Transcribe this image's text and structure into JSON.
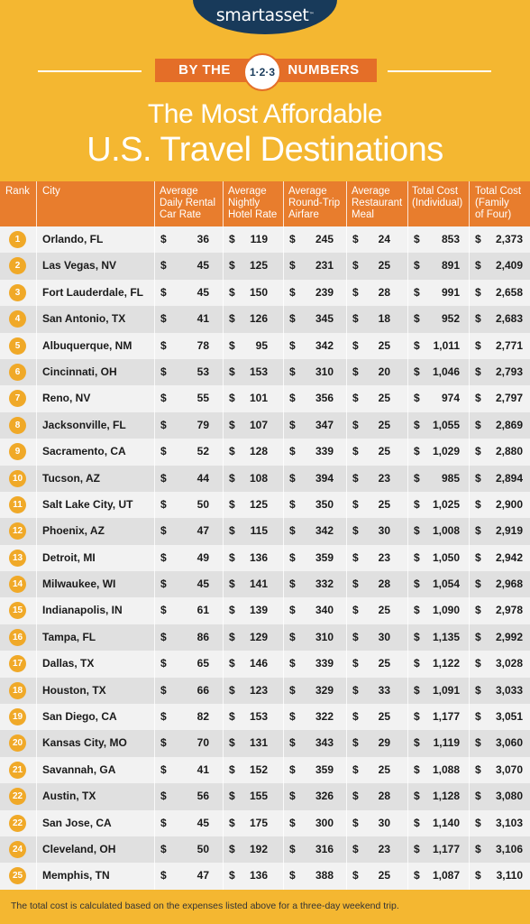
{
  "brand": {
    "name": "smartasset",
    "mark": "™"
  },
  "banner": {
    "left": "BY THE",
    "middle": "1·2·3",
    "right": "NUMBERS"
  },
  "title": {
    "line1": "The Most Affordable",
    "line2": "U.S. Travel Destinations"
  },
  "colors": {
    "background": "#f4b731",
    "header": "#e87d2d",
    "rank_dot": "#f0a928",
    "navy": "#183a5a"
  },
  "chart_data": {
    "type": "table",
    "columns": [
      "Rank",
      "City",
      "Average Daily Rental Car Rate",
      "Average Nightly Hotel Rate",
      "Average Round-Trip Airfare",
      "Average Restaurant Meal",
      "Total Cost (Individual)",
      "Total Cost (Family of Four)"
    ],
    "column_lines": [
      [
        "Rank"
      ],
      [
        "City"
      ],
      [
        "Average",
        "Daily Rental",
        "Car Rate"
      ],
      [
        "Average",
        "Nightly",
        "Hotel Rate"
      ],
      [
        "Average",
        "Round-Trip",
        "Airfare"
      ],
      [
        "Average",
        "Restaurant",
        "Meal"
      ],
      [
        "Total Cost",
        "(Individual)"
      ],
      [
        "Total Cost",
        "(Family",
        "of Four)"
      ]
    ],
    "currency": "$",
    "rows": [
      {
        "rank": "1",
        "city": "Orlando, FL",
        "car": "36",
        "hotel": "119",
        "air": "245",
        "meal": "24",
        "ind": "853",
        "fam": "2,373"
      },
      {
        "rank": "2",
        "city": "Las Vegas, NV",
        "car": "45",
        "hotel": "125",
        "air": "231",
        "meal": "25",
        "ind": "891",
        "fam": "2,409"
      },
      {
        "rank": "3",
        "city": "Fort Lauderdale, FL",
        "car": "45",
        "hotel": "150",
        "air": "239",
        "meal": "28",
        "ind": "991",
        "fam": "2,658"
      },
      {
        "rank": "4",
        "city": "San Antonio, TX",
        "car": "41",
        "hotel": "126",
        "air": "345",
        "meal": "18",
        "ind": "952",
        "fam": "2,683"
      },
      {
        "rank": "5",
        "city": "Albuquerque, NM",
        "car": "78",
        "hotel": "95",
        "air": "342",
        "meal": "25",
        "ind": "1,011",
        "fam": "2,771"
      },
      {
        "rank": "6",
        "city": "Cincinnati, OH",
        "car": "53",
        "hotel": "153",
        "air": "310",
        "meal": "20",
        "ind": "1,046",
        "fam": "2,793"
      },
      {
        "rank": "7",
        "city": "Reno, NV",
        "car": "55",
        "hotel": "101",
        "air": "356",
        "meal": "25",
        "ind": "974",
        "fam": "2,797"
      },
      {
        "rank": "8",
        "city": "Jacksonville, FL",
        "car": "79",
        "hotel": "107",
        "air": "347",
        "meal": "25",
        "ind": "1,055",
        "fam": "2,869"
      },
      {
        "rank": "9",
        "city": "Sacramento, CA",
        "car": "52",
        "hotel": "128",
        "air": "339",
        "meal": "25",
        "ind": "1,029",
        "fam": "2,880"
      },
      {
        "rank": "10",
        "city": "Tucson, AZ",
        "car": "44",
        "hotel": "108",
        "air": "394",
        "meal": "23",
        "ind": "985",
        "fam": "2,894"
      },
      {
        "rank": "11",
        "city": "Salt Lake City, UT",
        "car": "50",
        "hotel": "125",
        "air": "350",
        "meal": "25",
        "ind": "1,025",
        "fam": "2,900"
      },
      {
        "rank": "12",
        "city": "Phoenix, AZ",
        "car": "47",
        "hotel": "115",
        "air": "342",
        "meal": "30",
        "ind": "1,008",
        "fam": "2,919"
      },
      {
        "rank": "13",
        "city": "Detroit, MI",
        "car": "49",
        "hotel": "136",
        "air": "359",
        "meal": "23",
        "ind": "1,050",
        "fam": "2,942"
      },
      {
        "rank": "14",
        "city": "Milwaukee, WI",
        "car": "45",
        "hotel": "141",
        "air": "332",
        "meal": "28",
        "ind": "1,054",
        "fam": "2,968"
      },
      {
        "rank": "15",
        "city": "Indianapolis, IN",
        "car": "61",
        "hotel": "139",
        "air": "340",
        "meal": "25",
        "ind": "1,090",
        "fam": "2,978"
      },
      {
        "rank": "16",
        "city": "Tampa, FL",
        "car": "86",
        "hotel": "129",
        "air": "310",
        "meal": "30",
        "ind": "1,135",
        "fam": "2,992"
      },
      {
        "rank": "17",
        "city": "Dallas, TX",
        "car": "65",
        "hotel": "146",
        "air": "339",
        "meal": "25",
        "ind": "1,122",
        "fam": "3,028"
      },
      {
        "rank": "18",
        "city": "Houston, TX",
        "car": "66",
        "hotel": "123",
        "air": "329",
        "meal": "33",
        "ind": "1,091",
        "fam": "3,033"
      },
      {
        "rank": "19",
        "city": "San Diego, CA",
        "car": "82",
        "hotel": "153",
        "air": "322",
        "meal": "25",
        "ind": "1,177",
        "fam": "3,051"
      },
      {
        "rank": "20",
        "city": "Kansas City, MO",
        "car": "70",
        "hotel": "131",
        "air": "343",
        "meal": "29",
        "ind": "1,119",
        "fam": "3,060"
      },
      {
        "rank": "21",
        "city": "Savannah, GA",
        "car": "41",
        "hotel": "152",
        "air": "359",
        "meal": "25",
        "ind": "1,088",
        "fam": "3,070"
      },
      {
        "rank": "22",
        "city": "Austin, TX",
        "car": "56",
        "hotel": "155",
        "air": "326",
        "meal": "28",
        "ind": "1,128",
        "fam": "3,080"
      },
      {
        "rank": "22",
        "city": "San Jose, CA",
        "car": "45",
        "hotel": "175",
        "air": "300",
        "meal": "30",
        "ind": "1,140",
        "fam": "3,103"
      },
      {
        "rank": "24",
        "city": "Cleveland, OH",
        "car": "50",
        "hotel": "192",
        "air": "316",
        "meal": "23",
        "ind": "1,177",
        "fam": "3,106"
      },
      {
        "rank": "25",
        "city": "Memphis, TN",
        "car": "47",
        "hotel": "136",
        "air": "388",
        "meal": "25",
        "ind": "1,087",
        "fam": "3,110"
      }
    ]
  },
  "footnote": "The total cost is calculated based on the expenses listed above for a three-day weekend trip."
}
